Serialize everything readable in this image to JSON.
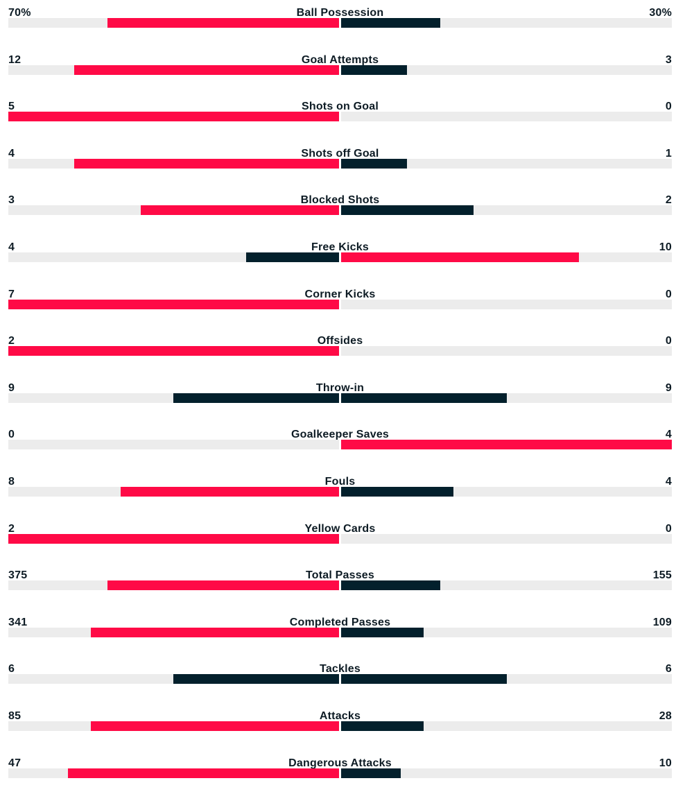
{
  "colors": {
    "leader": "#ff0a46",
    "trailer": "#03202c",
    "track": "#ececec"
  },
  "stats": [
    {
      "name": "Ball Possession",
      "home": "70%",
      "away": "30%",
      "home_fill": 0.7,
      "away_fill": 0.3,
      "home_color": "leader",
      "away_color": "trailer"
    },
    {
      "name": "Goal Attempts",
      "home": "12",
      "away": "3",
      "home_fill": 0.8,
      "away_fill": 0.2,
      "home_color": "leader",
      "away_color": "trailer"
    },
    {
      "name": "Shots on Goal",
      "home": "5",
      "away": "0",
      "home_fill": 1.0,
      "away_fill": 0.0,
      "home_color": "leader",
      "away_color": "trailer"
    },
    {
      "name": "Shots off Goal",
      "home": "4",
      "away": "1",
      "home_fill": 0.8,
      "away_fill": 0.2,
      "home_color": "leader",
      "away_color": "trailer"
    },
    {
      "name": "Blocked Shots",
      "home": "3",
      "away": "2",
      "home_fill": 0.6,
      "away_fill": 0.4,
      "home_color": "leader",
      "away_color": "trailer"
    },
    {
      "name": "Free Kicks",
      "home": "4",
      "away": "10",
      "home_fill": 0.28,
      "away_fill": 0.72,
      "home_color": "trailer",
      "away_color": "leader"
    },
    {
      "name": "Corner Kicks",
      "home": "7",
      "away": "0",
      "home_fill": 1.0,
      "away_fill": 0.0,
      "home_color": "leader",
      "away_color": "trailer"
    },
    {
      "name": "Offsides",
      "home": "2",
      "away": "0",
      "home_fill": 1.0,
      "away_fill": 0.0,
      "home_color": "leader",
      "away_color": "trailer"
    },
    {
      "name": "Throw-in",
      "home": "9",
      "away": "9",
      "home_fill": 0.5,
      "away_fill": 0.5,
      "home_color": "trailer",
      "away_color": "trailer"
    },
    {
      "name": "Goalkeeper Saves",
      "home": "0",
      "away": "4",
      "home_fill": 0.0,
      "away_fill": 1.0,
      "home_color": "trailer",
      "away_color": "leader"
    },
    {
      "name": "Fouls",
      "home": "8",
      "away": "4",
      "home_fill": 0.66,
      "away_fill": 0.34,
      "home_color": "leader",
      "away_color": "trailer"
    },
    {
      "name": "Yellow Cards",
      "home": "2",
      "away": "0",
      "home_fill": 1.0,
      "away_fill": 0.0,
      "home_color": "leader",
      "away_color": "trailer"
    },
    {
      "name": "Total Passes",
      "home": "375",
      "away": "155",
      "home_fill": 0.7,
      "away_fill": 0.3,
      "home_color": "leader",
      "away_color": "trailer"
    },
    {
      "name": "Completed Passes",
      "home": "341",
      "away": "109",
      "home_fill": 0.75,
      "away_fill": 0.25,
      "home_color": "leader",
      "away_color": "trailer"
    },
    {
      "name": "Tackles",
      "home": "6",
      "away": "6",
      "home_fill": 0.5,
      "away_fill": 0.5,
      "home_color": "trailer",
      "away_color": "trailer"
    },
    {
      "name": "Attacks",
      "home": "85",
      "away": "28",
      "home_fill": 0.75,
      "away_fill": 0.25,
      "home_color": "leader",
      "away_color": "trailer"
    },
    {
      "name": "Dangerous Attacks",
      "home": "47",
      "away": "10",
      "home_fill": 0.82,
      "away_fill": 0.18,
      "home_color": "leader",
      "away_color": "trailer"
    }
  ]
}
